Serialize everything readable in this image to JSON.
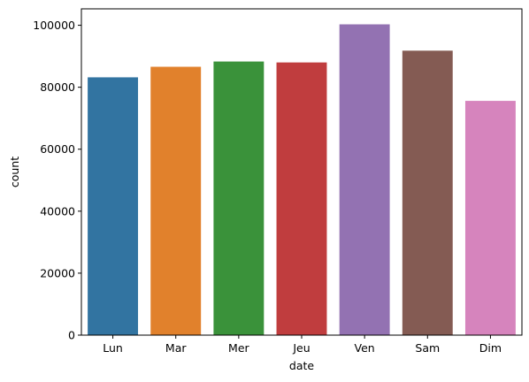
{
  "chart_data": {
    "type": "bar",
    "categories": [
      "Lun",
      "Mar",
      "Mer",
      "Jeu",
      "Ven",
      "Sam",
      "Dim"
    ],
    "values": [
      83200,
      86600,
      88300,
      88000,
      100300,
      91800,
      75600
    ],
    "colors": [
      "#3274a1",
      "#e1812c",
      "#3a923a",
      "#c03d3e",
      "#9372b2",
      "#845b53",
      "#d684bd"
    ],
    "xlabel": "date",
    "ylabel": "count",
    "ylim": [
      0,
      105300
    ],
    "yticks": [
      0,
      20000,
      40000,
      60000,
      80000,
      100000
    ],
    "grid": false,
    "legend": "none"
  }
}
